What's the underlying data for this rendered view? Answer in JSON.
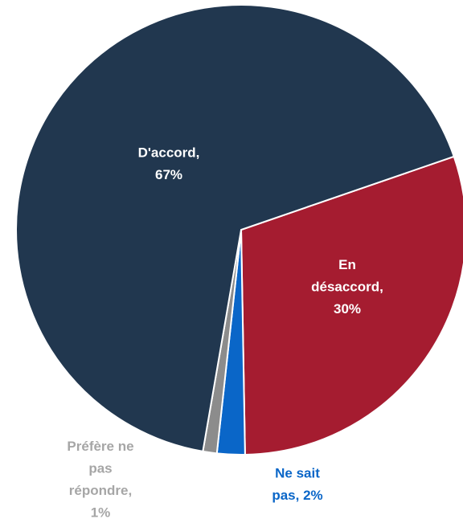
{
  "chart_data": {
    "type": "pie",
    "values": [
      30,
      2,
      1,
      67
    ],
    "labels": [
      [
        "En",
        "désaccord,",
        "30%"
      ],
      [
        "Ne sait",
        "pas, 2%"
      ],
      [
        "Préfère ne",
        "pas",
        "répondre,",
        "1%"
      ],
      [
        "D'accord,",
        "67%"
      ]
    ],
    "colors": [
      "#a51c30",
      "#0a66c8",
      "#8c8c8c",
      "#21374f"
    ],
    "label_colors": [
      "#ffffff",
      "#0a66c8",
      "#a6a6a6",
      "#ffffff"
    ]
  }
}
